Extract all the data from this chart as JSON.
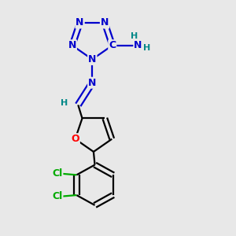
{
  "bg_color": "#e8e8e8",
  "atom_colors": {
    "N": "#0000cc",
    "O": "#ff0000",
    "Cl": "#00aa00",
    "C": "#000000",
    "H": "#008888"
  },
  "bond_color": "#000000",
  "bond_width": 1.6,
  "figsize": [
    3.0,
    3.0
  ],
  "dpi": 100
}
